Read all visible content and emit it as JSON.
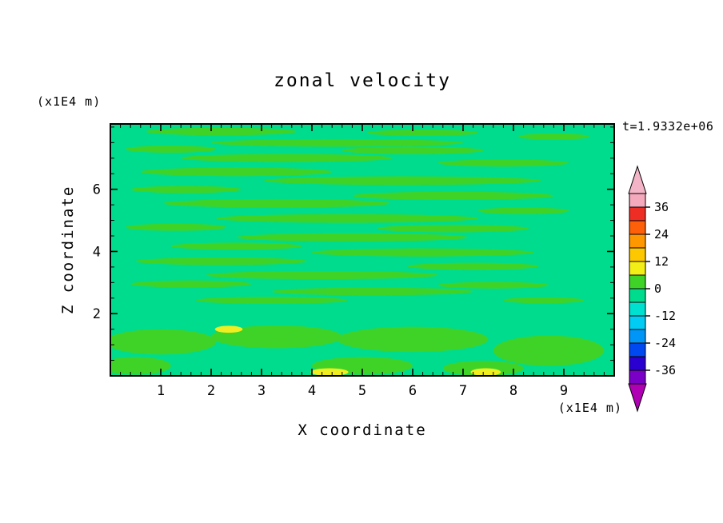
{
  "chart_data": {
    "type": "contour",
    "title": "zonal velocity",
    "xlabel": "X coordinate",
    "ylabel": "Z coordinate",
    "x_unit_label": "(x1E4 m)",
    "y_unit_label": "(x1E4 m)",
    "time_annotation": "t=1.9332e+06",
    "x_range": [
      0,
      10
    ],
    "y_range": [
      0,
      8.1
    ],
    "x_ticks": [
      1,
      2,
      3,
      4,
      5,
      6,
      7,
      8,
      9
    ],
    "y_ticks": [
      2,
      4,
      6
    ],
    "x_minor_step": 0.2,
    "y_minor_step": 0.5,
    "grid": false,
    "legend_position": "none",
    "colorbar": {
      "position": "right",
      "top_value": 42,
      "bottom_value": -42,
      "level_step": 6,
      "label_values": [
        36,
        24,
        12,
        0,
        -12,
        -24,
        -36
      ],
      "segment_colors": [
        "#f5a9bc",
        "#ee2e24",
        "#fd6008",
        "#ff9800",
        "#fdc800",
        "#f4ee17",
        "#3fd327",
        "#00dc8e",
        "#00e0d0",
        "#00ccf4",
        "#0096f8",
        "#0048f0",
        "#2a00d0",
        "#7a00c8"
      ],
      "over_arrow_color": "#f2b4c6",
      "under_arrow_color": "#b000b4"
    },
    "field": {
      "description": "zonal velocity field, values mostly in bands -6..0 and 0..6 with small 6..12 spots near the bottom",
      "background_band": "-6..0",
      "background_color": "#00dc8e",
      "streak_band": "0..6",
      "streak_color": "#3fd327",
      "spot_band": "6..12",
      "spot_color": "#f0ee20",
      "streaks": [
        [
          0.22,
          0.03,
          0.3,
          0.03
        ],
        [
          0.62,
          0.035,
          0.22,
          0.025
        ],
        [
          0.88,
          0.05,
          0.14,
          0.025
        ],
        [
          0.45,
          0.075,
          0.5,
          0.03
        ],
        [
          0.12,
          0.1,
          0.18,
          0.028
        ],
        [
          0.6,
          0.105,
          0.28,
          0.03
        ],
        [
          0.35,
          0.135,
          0.42,
          0.032
        ],
        [
          0.78,
          0.155,
          0.26,
          0.028
        ],
        [
          0.25,
          0.19,
          0.38,
          0.034
        ],
        [
          0.58,
          0.225,
          0.55,
          0.034
        ],
        [
          0.15,
          0.26,
          0.22,
          0.028
        ],
        [
          0.68,
          0.285,
          0.4,
          0.032
        ],
        [
          0.33,
          0.315,
          0.45,
          0.034
        ],
        [
          0.82,
          0.345,
          0.18,
          0.026
        ],
        [
          0.47,
          0.375,
          0.52,
          0.034
        ],
        [
          0.13,
          0.41,
          0.2,
          0.028
        ],
        [
          0.68,
          0.415,
          0.3,
          0.03
        ],
        [
          0.48,
          0.45,
          0.46,
          0.032
        ],
        [
          0.25,
          0.485,
          0.26,
          0.028
        ],
        [
          0.62,
          0.51,
          0.44,
          0.032
        ],
        [
          0.22,
          0.545,
          0.34,
          0.03
        ],
        [
          0.72,
          0.565,
          0.26,
          0.028
        ],
        [
          0.42,
          0.6,
          0.46,
          0.032
        ],
        [
          0.16,
          0.635,
          0.24,
          0.028
        ],
        [
          0.76,
          0.64,
          0.22,
          0.026
        ],
        [
          0.52,
          0.665,
          0.4,
          0.03
        ],
        [
          0.32,
          0.7,
          0.3,
          0.028
        ],
        [
          0.86,
          0.7,
          0.16,
          0.024
        ]
      ],
      "blobs": [
        [
          0.1,
          0.865,
          0.22,
          0.1
        ],
        [
          0.33,
          0.845,
          0.26,
          0.09
        ],
        [
          0.6,
          0.855,
          0.3,
          0.1
        ],
        [
          0.87,
          0.9,
          0.22,
          0.12
        ],
        [
          0.05,
          0.96,
          0.14,
          0.07
        ],
        [
          0.5,
          0.96,
          0.2,
          0.07
        ],
        [
          0.74,
          0.97,
          0.16,
          0.06
        ]
      ],
      "spots": [
        [
          0.235,
          0.815,
          0.055,
          0.028
        ],
        [
          0.435,
          0.985,
          0.075,
          0.03
        ],
        [
          0.745,
          0.985,
          0.06,
          0.03
        ]
      ]
    }
  }
}
